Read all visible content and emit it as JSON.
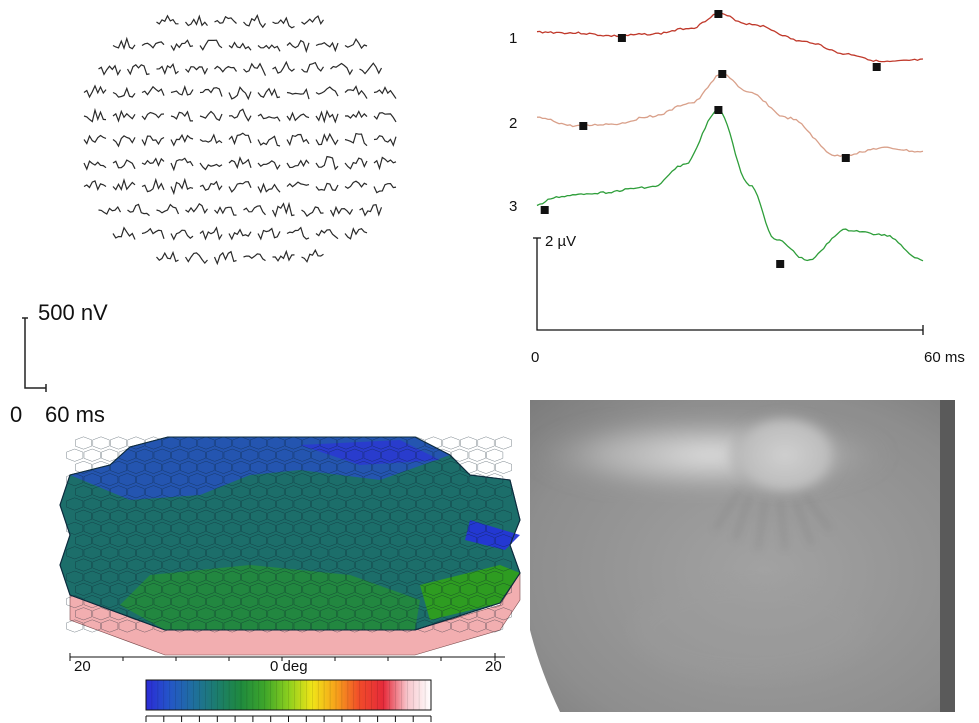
{
  "trace_array": {
    "amplitude_scale": "500 nV",
    "time_zero": "0",
    "time_scale": "60 ms",
    "trace_color": "#2a2a2a",
    "row_counts": [
      6,
      9,
      10,
      11,
      11,
      11,
      11,
      11,
      10,
      9,
      6
    ]
  },
  "response_panel": {
    "traces": [
      {
        "label": "1",
        "color": "#c0392b"
      },
      {
        "label": "2",
        "color": "#d9a08a"
      },
      {
        "label": "3",
        "color": "#2e9e3a"
      }
    ],
    "amplitude_scale": "2 µV",
    "x_start": "0",
    "x_end": "60 ms"
  },
  "topography": {
    "x_left": "20",
    "x_center": "0 deg",
    "x_right": "20",
    "base_color": "#f2aeb0",
    "colorbar_colors": [
      "#2b2bd6",
      "#2456c8",
      "#1f6f9e",
      "#1c7d6c",
      "#1f8a3e",
      "#3ea62a",
      "#8ccf1e",
      "#f0e418",
      "#f7a21b",
      "#f04a2a",
      "#e52a3a",
      "#f7c6cc",
      "#ffffff"
    ]
  },
  "fundus_image": {
    "tone": "#9a9a9a"
  }
}
